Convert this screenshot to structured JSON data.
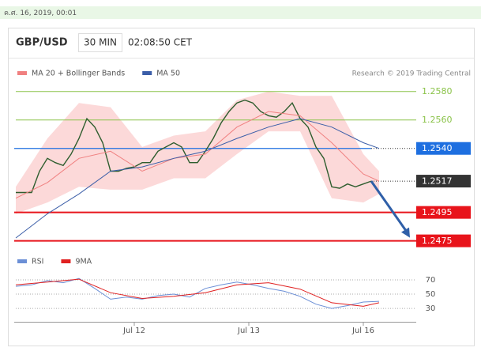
{
  "header": {
    "timestamp": "ค.ศ. 16, 2019, 00:01"
  },
  "chart_data": [
    {
      "type": "line",
      "title": "GBP/USD",
      "interval": "30 MIN",
      "time": "02:08:50 CET",
      "credit": "Research © 2019 Trading Central",
      "xlim": [
        0,
        50.7
      ],
      "ylim": [
        1.2472,
        1.2586
      ],
      "price": {
        "color": "#2e5d2e",
        "x": [
          0,
          1,
          2,
          3,
          4,
          5,
          6,
          7,
          8,
          9,
          10,
          11,
          12,
          13,
          14,
          15,
          16,
          17,
          18,
          19,
          20,
          21,
          22,
          23,
          24,
          25,
          26,
          27,
          28,
          29,
          30,
          31,
          32,
          33,
          34,
          35,
          36,
          37,
          38,
          39,
          40,
          41,
          42,
          43,
          44,
          45
        ],
        "values": [
          1.2509,
          1.2509,
          1.2509,
          1.2524,
          1.2533,
          1.253,
          1.2528,
          1.2536,
          1.2547,
          1.2561,
          1.2555,
          1.2544,
          1.2524,
          1.2524,
          1.2526,
          1.2527,
          1.253,
          1.253,
          1.2538,
          1.2541,
          1.2544,
          1.2541,
          1.253,
          1.253,
          1.2538,
          1.2547,
          1.2558,
          1.2566,
          1.2572,
          1.2574,
          1.2572,
          1.2566,
          1.2563,
          1.2562,
          1.2566,
          1.2572,
          1.2561,
          1.2555,
          1.2541,
          1.2533,
          1.2513,
          1.2512,
          1.2515,
          1.2513,
          1.2515,
          1.2517
        ]
      },
      "series": [
        {
          "name": "MA 20 + Bollinger Bands",
          "color": "#f08080",
          "band_color": "#fcd9d9",
          "x": [
            0,
            4,
            8,
            12,
            16,
            20,
            24,
            28,
            32,
            36,
            40,
            44,
            46
          ],
          "values": [
            1.2505,
            1.2516,
            1.2533,
            1.2538,
            1.2524,
            1.2533,
            1.2536,
            1.2555,
            1.2566,
            1.2563,
            1.2544,
            1.2522,
            1.2517
          ],
          "upper": [
            1.2513,
            1.2547,
            1.2572,
            1.2569,
            1.2541,
            1.2549,
            1.2552,
            1.2574,
            1.258,
            1.2577,
            1.2577,
            1.2536,
            1.2524
          ],
          "lower": [
            1.2494,
            1.2502,
            1.2513,
            1.2511,
            1.2511,
            1.2519,
            1.2519,
            1.2536,
            1.2552,
            1.2552,
            1.2505,
            1.2502,
            1.2508
          ]
        },
        {
          "name": "MA 50",
          "color": "#3b5ea8",
          "x": [
            0,
            4,
            8,
            12,
            16,
            20,
            24,
            28,
            32,
            36,
            40,
            44,
            46
          ],
          "values": [
            1.2477,
            1.2494,
            1.2508,
            1.2524,
            1.2527,
            1.2533,
            1.2538,
            1.2547,
            1.2555,
            1.2561,
            1.2555,
            1.2544,
            1.254
          ]
        }
      ],
      "levels": [
        {
          "value": 1.258,
          "label": "1.2580",
          "style": "guide",
          "color": "#8bc34a"
        },
        {
          "value": 1.256,
          "label": "1.2560",
          "style": "guide",
          "color": "#8bc34a"
        },
        {
          "value": 1.254,
          "label": "1.2540",
          "style": "boxed",
          "color": "#1e6fe0"
        },
        {
          "value": 1.2517,
          "label": "1.2517",
          "style": "current",
          "color": "#333333"
        },
        {
          "value": 1.2495,
          "label": "1.2495",
          "style": "target",
          "color": "#e8141b"
        },
        {
          "value": 1.2475,
          "label": "1.2475",
          "style": "target",
          "color": "#e8141b"
        }
      ]
    },
    {
      "type": "line",
      "xlim": [
        0,
        50.7
      ],
      "ylim": [
        19,
        80
      ],
      "yticks": [
        30,
        50,
        70
      ],
      "xticks": [
        {
          "value": 15,
          "label": "Jul 12"
        },
        {
          "value": 29.5,
          "label": "Jul 13"
        },
        {
          "value": 44,
          "label": "Jul 16"
        }
      ],
      "series": [
        {
          "name": "RSI",
          "color": "#6b8fd6",
          "x": [
            0,
            2,
            4,
            6,
            8,
            10,
            12,
            14,
            16,
            18,
            20,
            22,
            24,
            26,
            28,
            30,
            32,
            34,
            36,
            38,
            40,
            42,
            44,
            46
          ],
          "values": [
            61,
            63,
            69,
            66,
            72,
            58,
            43,
            46,
            43,
            48,
            50,
            46,
            58,
            63,
            67,
            63,
            58,
            54,
            47,
            36,
            30,
            34,
            39,
            40
          ]
        },
        {
          "name": "9MA",
          "color": "#e02020",
          "x": [
            0,
            4,
            8,
            12,
            16,
            20,
            24,
            28,
            32,
            36,
            40,
            44,
            46
          ],
          "values": [
            63,
            67,
            71,
            52,
            44,
            47,
            52,
            63,
            66,
            57,
            38,
            33,
            38
          ]
        }
      ]
    }
  ]
}
